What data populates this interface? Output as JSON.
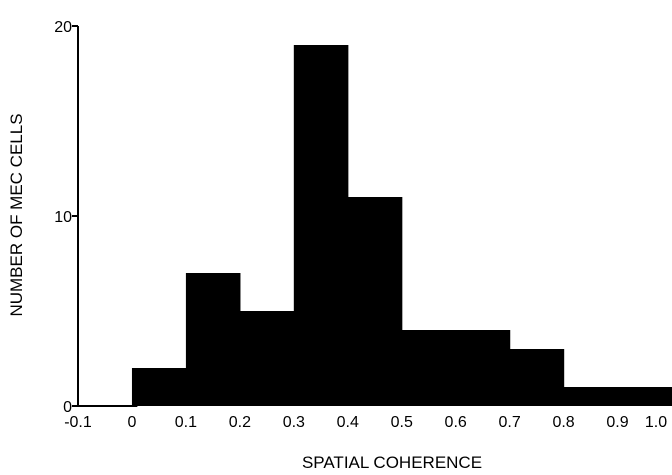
{
  "chart_data": {
    "type": "bar",
    "title": "",
    "xlabel": "SPATIAL COHERENCE",
    "ylabel": "NUMBER OF MEC CELLS",
    "xlim": [
      -0.1,
      1.0
    ],
    "ylim": [
      0,
      20
    ],
    "x_ticks": [
      "-0.1",
      "0",
      "0.1",
      "0.2",
      "0.3",
      "0.4",
      "0.5",
      "0.6",
      "0.7",
      "0.8",
      "0.9",
      "1.0"
    ],
    "y_ticks": [
      "0",
      "10",
      "20"
    ],
    "bins": [
      {
        "x0": 0.0,
        "x1": 0.1,
        "count": 2
      },
      {
        "x0": 0.1,
        "x1": 0.2,
        "count": 7
      },
      {
        "x0": 0.2,
        "x1": 0.3,
        "count": 5
      },
      {
        "x0": 0.3,
        "x1": 0.4,
        "count": 19
      },
      {
        "x0": 0.4,
        "x1": 0.5,
        "count": 11
      },
      {
        "x0": 0.5,
        "x1": 0.6,
        "count": 4
      },
      {
        "x0": 0.6,
        "x1": 0.7,
        "count": 4
      },
      {
        "x0": 0.7,
        "x1": 0.8,
        "count": 3
      },
      {
        "x0": 0.8,
        "x1": 0.9,
        "count": 1
      },
      {
        "x0": 0.9,
        "x1": 1.0,
        "count": 1
      }
    ],
    "bar_color": "#000000",
    "grid": false,
    "legend": "none"
  }
}
